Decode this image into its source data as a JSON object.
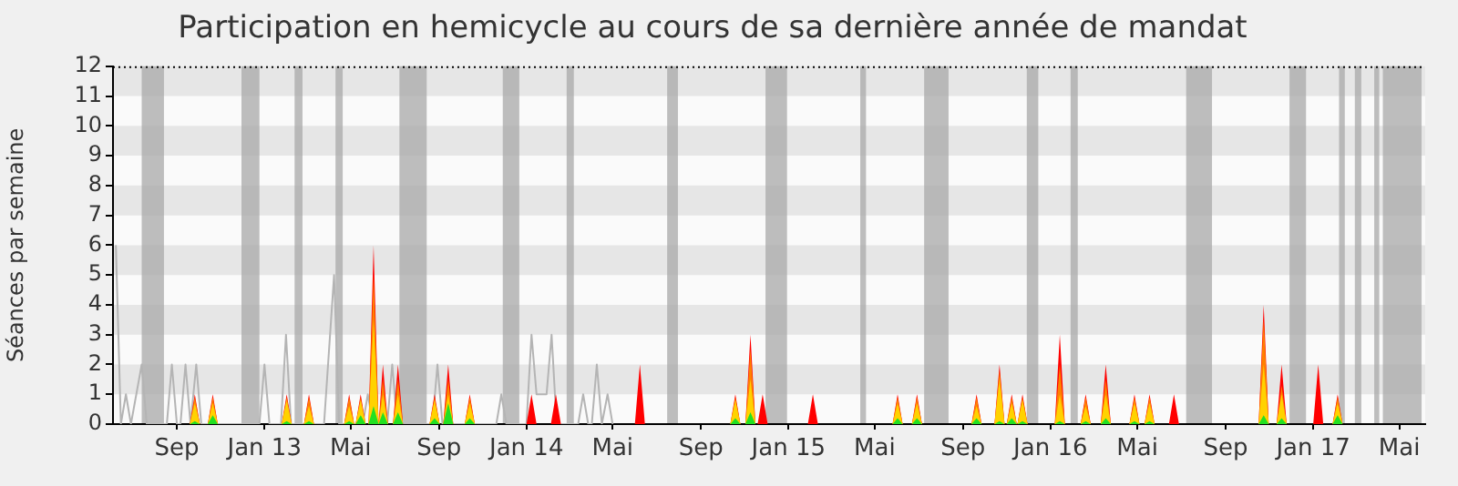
{
  "chart_data": {
    "type": "area",
    "title": "Participation en hemicycle au cours de sa dernière année de mandat",
    "ylabel": "Séances par semaine",
    "xlim": [
      "2012-06-18",
      "2017-06-20"
    ],
    "ylim": [
      0,
      12
    ],
    "yticks": [
      0,
      1,
      2,
      3,
      4,
      5,
      6,
      7,
      8,
      9,
      10,
      11,
      12
    ],
    "xticks": [
      {
        "value": "2012-09-15",
        "label": "Sep"
      },
      {
        "value": "2013-01-15",
        "label": "Jan 13"
      },
      {
        "value": "2013-05-15",
        "label": "Mai"
      },
      {
        "value": "2013-09-15",
        "label": "Sep"
      },
      {
        "value": "2014-01-15",
        "label": "Jan 14"
      },
      {
        "value": "2014-05-15",
        "label": "Mai"
      },
      {
        "value": "2014-09-15",
        "label": "Sep"
      },
      {
        "value": "2015-01-15",
        "label": "Jan 15"
      },
      {
        "value": "2015-05-15",
        "label": "Mai"
      },
      {
        "value": "2015-09-15",
        "label": "Sep"
      },
      {
        "value": "2016-01-15",
        "label": "Jan 16"
      },
      {
        "value": "2016-05-15",
        "label": "Mai"
      },
      {
        "value": "2016-09-15",
        "label": "Sep"
      },
      {
        "value": "2017-01-15",
        "label": "Jan 17"
      },
      {
        "value": "2017-05-15",
        "label": "Mai"
      }
    ],
    "bands": [
      {
        "axis": "y",
        "from": 1,
        "to": 2,
        "color": "#e6e6e6"
      },
      {
        "axis": "y",
        "from": 3,
        "to": 4,
        "color": "#e6e6e6"
      },
      {
        "axis": "y",
        "from": 5,
        "to": 6,
        "color": "#e6e6e6"
      },
      {
        "axis": "y",
        "from": 7,
        "to": 8,
        "color": "#e6e6e6"
      },
      {
        "axis": "y",
        "from": 9,
        "to": 10,
        "color": "#e6e6e6"
      },
      {
        "axis": "y",
        "from": 11,
        "to": 12,
        "color": "#e6e6e6"
      },
      {
        "axis": "x",
        "from": "2012-07-28",
        "to": "2012-08-28",
        "color": "#a8a8a8"
      },
      {
        "axis": "x",
        "from": "2012-12-14",
        "to": "2013-01-08",
        "color": "#a8a8a8"
      },
      {
        "axis": "x",
        "from": "2013-02-26",
        "to": "2013-03-09",
        "color": "#a8a8a8"
      },
      {
        "axis": "x",
        "from": "2013-04-24",
        "to": "2013-05-04",
        "color": "#a8a8a8"
      },
      {
        "axis": "x",
        "from": "2013-07-22",
        "to": "2013-08-29",
        "color": "#a8a8a8"
      },
      {
        "axis": "x",
        "from": "2013-12-13",
        "to": "2014-01-05",
        "color": "#a8a8a8"
      },
      {
        "axis": "x",
        "from": "2014-03-12",
        "to": "2014-03-22",
        "color": "#a8a8a8"
      },
      {
        "axis": "x",
        "from": "2014-07-30",
        "to": "2014-08-14",
        "color": "#a8a8a8"
      },
      {
        "axis": "x",
        "from": "2014-12-14",
        "to": "2015-01-13",
        "color": "#a8a8a8"
      },
      {
        "axis": "x",
        "from": "2015-04-25",
        "to": "2015-05-03",
        "color": "#a8a8a8"
      },
      {
        "axis": "x",
        "from": "2015-07-23",
        "to": "2015-08-26",
        "color": "#a8a8a8"
      },
      {
        "axis": "x",
        "from": "2015-12-13",
        "to": "2015-12-29",
        "color": "#a8a8a8"
      },
      {
        "axis": "x",
        "from": "2016-02-12",
        "to": "2016-02-22",
        "color": "#a8a8a8"
      },
      {
        "axis": "x",
        "from": "2016-07-22",
        "to": "2016-08-27",
        "color": "#a8a8a8"
      },
      {
        "axis": "x",
        "from": "2016-12-13",
        "to": "2017-01-05",
        "color": "#a8a8a8"
      },
      {
        "axis": "x",
        "from": "2017-02-20",
        "to": "2017-02-28",
        "color": "#a8a8a8"
      },
      {
        "axis": "x",
        "from": "2017-03-14",
        "to": "2017-03-23",
        "color": "#a8a8a8"
      },
      {
        "axis": "x",
        "from": "2017-04-10",
        "to": "2017-04-17",
        "color": "#a8a8a8"
      },
      {
        "axis": "x",
        "from": "2017-04-22",
        "to": "2017-06-15",
        "color": "#a8a8a8"
      }
    ],
    "x": [
      "2012-10-03",
      "2012-10-10",
      "2012-10-17",
      "2012-10-28",
      "2012-11-04",
      "2012-11-11",
      "2013-02-08",
      "2013-02-15",
      "2013-02-22",
      "2013-03-11",
      "2013-03-18",
      "2013-03-25",
      "2013-05-06",
      "2013-05-13",
      "2013-05-20",
      "2013-05-22",
      "2013-05-29",
      "2013-06-05",
      "2013-06-09",
      "2013-06-16",
      "2013-06-23",
      "2013-06-29",
      "2013-07-06",
      "2013-07-13",
      "2013-07-20",
      "2013-07-27",
      "2013-09-02",
      "2013-09-09",
      "2013-09-16",
      "2013-09-21",
      "2013-09-28",
      "2013-10-05",
      "2013-10-21",
      "2013-10-28",
      "2013-11-04",
      "2014-01-15",
      "2014-01-22",
      "2014-01-29",
      "2014-02-18",
      "2014-02-25",
      "2014-03-04",
      "2014-06-15",
      "2014-06-22",
      "2014-06-29",
      "2014-10-26",
      "2014-11-02",
      "2014-11-09",
      "2014-11-16",
      "2014-11-23",
      "2014-11-30",
      "2014-12-03",
      "2014-12-10",
      "2014-12-17",
      "2015-02-11",
      "2015-02-18",
      "2015-02-25",
      "2015-06-09",
      "2015-06-16",
      "2015-06-23",
      "2015-07-06",
      "2015-07-13",
      "2015-07-20",
      "2015-09-27",
      "2015-10-04",
      "2015-10-11",
      "2015-10-29",
      "2015-11-05",
      "2015-11-12",
      "2015-11-15",
      "2015-11-22",
      "2015-11-29",
      "2015-11-30",
      "2015-12-07",
      "2015-12-14",
      "2016-01-21",
      "2016-01-28",
      "2016-02-04",
      "2016-02-26",
      "2016-03-04",
      "2016-03-11",
      "2016-03-25",
      "2016-04-01",
      "2016-04-08",
      "2016-05-04",
      "2016-05-11",
      "2016-05-18",
      "2016-05-25",
      "2016-06-01",
      "2016-06-08",
      "2016-06-28",
      "2016-07-05",
      "2016-07-12",
      "2016-10-31",
      "2016-11-07",
      "2016-11-14",
      "2016-11-25",
      "2016-12-02",
      "2016-12-09",
      "2017-01-15",
      "2017-01-22",
      "2017-01-29",
      "2017-02-11",
      "2017-02-18",
      "2017-02-25"
    ],
    "series": [
      {
        "type": "line",
        "color": "#b4b4b4",
        "x": [
          "2012-06-22",
          "2012-06-29",
          "2012-07-06",
          "2012-07-13",
          "2012-07-28",
          "2012-08-04",
          "2012-09-01",
          "2012-09-08",
          "2012-09-15",
          "2012-09-20",
          "2012-09-27",
          "2012-10-04",
          "2012-10-12",
          "2012-10-19",
          "2013-01-08",
          "2013-01-15",
          "2013-01-22",
          "2013-02-07",
          "2013-02-14",
          "2013-02-21",
          "2013-04-08",
          "2013-04-22",
          "2013-04-29",
          "2013-06-01",
          "2013-06-08",
          "2013-06-15",
          "2013-07-05",
          "2013-07-12",
          "2013-07-19",
          "2013-09-06",
          "2013-09-13",
          "2013-09-20",
          "2013-12-04",
          "2013-12-11",
          "2013-12-18",
          "2014-01-15",
          "2014-01-22",
          "2014-01-29",
          "2014-02-12",
          "2014-02-19",
          "2014-02-26",
          "2014-03-28",
          "2014-04-04",
          "2014-04-11",
          "2014-04-16",
          "2014-04-23",
          "2014-04-30",
          "2014-05-08",
          "2014-05-15"
        ],
        "values": [
          6,
          0,
          1,
          0,
          2,
          0,
          0,
          2,
          0,
          0,
          2,
          0,
          2,
          0,
          0,
          2,
          0,
          0,
          3,
          0,
          0,
          5,
          0,
          0,
          1,
          0,
          0,
          2,
          0,
          0,
          2,
          0,
          0,
          1,
          0,
          0,
          3,
          1,
          1,
          3,
          0,
          0,
          1,
          0,
          0,
          2,
          0,
          1,
          0
        ]
      },
      {
        "color": "#ff0000",
        "values": [
          0,
          1,
          0,
          0,
          1,
          0,
          0,
          1,
          0,
          0,
          1,
          0,
          0,
          1,
          0,
          0,
          1,
          0,
          0,
          6,
          0,
          2,
          0,
          0,
          2,
          0,
          0,
          1,
          0,
          0,
          2,
          0,
          0,
          1,
          0,
          0,
          1,
          0,
          0,
          1,
          0,
          0,
          2,
          0,
          0,
          1,
          0,
          0,
          3,
          0,
          0,
          1,
          0,
          0,
          1,
          0,
          0,
          1,
          0,
          0,
          1,
          0,
          0,
          1,
          0,
          0,
          2,
          0,
          0,
          1,
          0,
          0,
          1,
          0,
          0,
          3,
          0,
          0,
          1,
          0,
          0,
          2,
          0,
          0,
          1,
          0,
          0,
          1,
          0,
          0,
          1,
          0,
          0,
          4,
          0,
          0,
          2,
          0,
          0,
          2,
          0,
          0,
          1,
          0
        ]
      },
      {
        "color": "#ff8000",
        "values": [
          0,
          0.9,
          0,
          0,
          0.9,
          0,
          0,
          0.9,
          0,
          0,
          0.9,
          0,
          0,
          0.9,
          0,
          0,
          0.9,
          0,
          0,
          5,
          0,
          1.5,
          0,
          0,
          1.5,
          0,
          0,
          0.9,
          0,
          0,
          1.5,
          0,
          0,
          0.9,
          0,
          0,
          0,
          0,
          0,
          0,
          0,
          0,
          0,
          0,
          0,
          0.9,
          0,
          0,
          2.5,
          0,
          0,
          0,
          0,
          0,
          0,
          0,
          0,
          0.9,
          0,
          0,
          0.9,
          0,
          0,
          0.9,
          0,
          0,
          1.8,
          0,
          0,
          0.9,
          0,
          0,
          0.9,
          0,
          0,
          2,
          0,
          0,
          0.9,
          0,
          0,
          1.5,
          0,
          0,
          0.9,
          0,
          0,
          0.9,
          0,
          0,
          0,
          0,
          0,
          3.5,
          0,
          0,
          1.3,
          0,
          0,
          0,
          0,
          0,
          0.9,
          0
        ]
      },
      {
        "color": "#ffd200",
        "values": [
          0,
          0.7,
          0,
          0,
          0.7,
          0,
          0,
          0.8,
          0,
          0,
          0.6,
          0,
          0,
          0.6,
          0,
          0,
          0.8,
          0,
          0,
          3.5,
          0,
          1,
          0,
          0,
          1,
          0,
          0,
          0.8,
          0,
          0,
          1,
          0,
          0,
          0.7,
          0,
          0,
          0,
          0,
          0,
          0,
          0,
          0,
          0,
          0,
          0,
          0.8,
          0,
          0,
          1.5,
          0,
          0,
          0,
          0,
          0,
          0,
          0,
          0,
          0.7,
          0,
          0,
          0.7,
          0,
          0,
          0.6,
          0,
          0,
          1.5,
          0,
          0,
          0.7,
          0,
          0,
          0.8,
          0,
          0,
          1,
          0,
          0,
          0.6,
          0,
          0,
          1,
          0,
          0,
          0.7,
          0,
          0,
          0.7,
          0,
          0,
          0,
          0,
          0,
          2,
          0,
          0,
          1,
          0,
          0,
          0,
          0,
          0,
          0.7,
          0
        ]
      },
      {
        "color": "#22e022",
        "values": [
          0,
          0.1,
          0,
          0,
          0.3,
          0,
          0,
          0.1,
          0,
          0,
          0.1,
          0,
          0,
          0.1,
          0,
          0,
          0.3,
          0,
          0,
          0.6,
          0,
          0.4,
          0,
          0,
          0.4,
          0,
          0,
          0.2,
          0,
          0,
          0.7,
          0,
          0,
          0.2,
          0,
          0,
          0,
          0,
          0,
          0,
          0,
          0,
          0,
          0,
          0,
          0.2,
          0,
          0,
          0.4,
          0,
          0,
          0,
          0,
          0,
          0,
          0,
          0,
          0.2,
          0,
          0,
          0.2,
          0,
          0,
          0.2,
          0,
          0,
          0.1,
          0,
          0,
          0.2,
          0,
          0,
          0.1,
          0,
          0,
          0.1,
          0,
          0,
          0.1,
          0,
          0,
          0.2,
          0,
          0,
          0.1,
          0,
          0,
          0.1,
          0,
          0,
          0,
          0,
          0,
          0.3,
          0,
          0,
          0.2,
          0,
          0,
          0,
          0,
          0,
          0.3,
          0
        ]
      }
    ]
  }
}
